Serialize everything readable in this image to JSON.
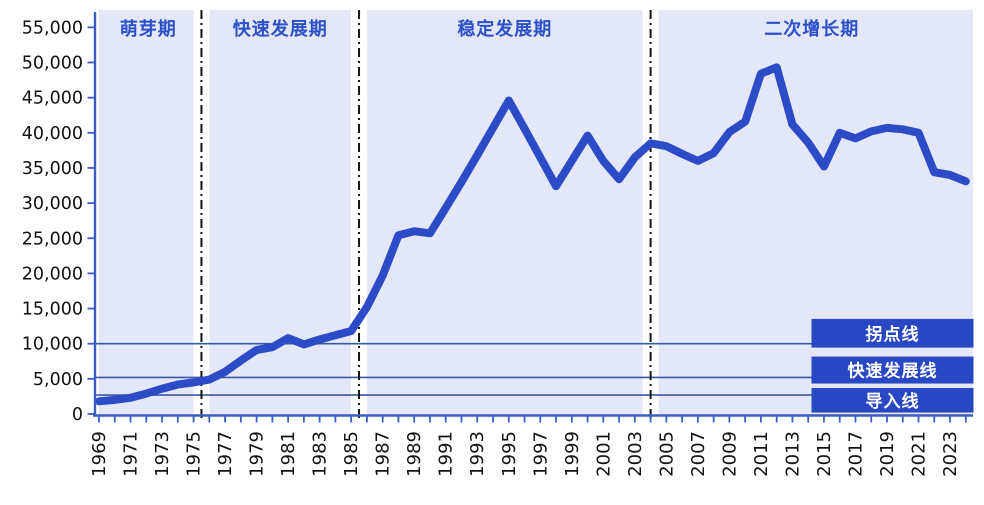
{
  "chart_data": {
    "type": "line",
    "title": "",
    "x_years": [
      1969,
      1970,
      1971,
      1972,
      1973,
      1974,
      1975,
      1976,
      1977,
      1978,
      1979,
      1980,
      1981,
      1982,
      1983,
      1984,
      1985,
      1986,
      1987,
      1988,
      1989,
      1990,
      1991,
      1992,
      1993,
      1994,
      1995,
      1996,
      1997,
      1998,
      1999,
      2000,
      2001,
      2002,
      2003,
      2004,
      2005,
      2006,
      2007,
      2008,
      2009,
      2010,
      2011,
      2012,
      2013,
      2014,
      2015,
      2016,
      2017,
      2018,
      2019,
      2020,
      2021,
      2022,
      2023,
      2024
    ],
    "values": [
      1800,
      2000,
      2300,
      2900,
      3600,
      4200,
      4500,
      4900,
      6000,
      7600,
      9100,
      9500,
      10800,
      9900,
      10600,
      11200,
      11800,
      15200,
      19700,
      25400,
      26000,
      25700,
      29300,
      33000,
      36800,
      40700,
      44600,
      40600,
      36500,
      32400,
      36000,
      39600,
      36000,
      33400,
      36500,
      38500,
      38100,
      37000,
      36000,
      37100,
      40100,
      41600,
      48400,
      49300,
      41200,
      38600,
      35200,
      40000,
      39200,
      40200,
      40700,
      40500,
      40000,
      34400,
      34000,
      33100
    ],
    "ylim": [
      0,
      55000
    ],
    "ytick_step": 5000,
    "ytick_labels": [
      "0",
      "5,000",
      "10,000",
      "15,000",
      "20,000",
      "25,000",
      "30,000",
      "35,000",
      "40,000",
      "45,000",
      "50,000",
      "55,000"
    ],
    "xtick_label_years": [
      1969,
      1971,
      1973,
      1975,
      1977,
      1979,
      1981,
      1983,
      1985,
      1987,
      1989,
      1991,
      1993,
      1995,
      1997,
      1999,
      2001,
      2003,
      2005,
      2007,
      2009,
      2011,
      2013,
      2015,
      2017,
      2019,
      2021,
      2023
    ],
    "grid": false,
    "legend_position": "none",
    "phases": [
      {
        "label": "萌芽期",
        "from": 1968.5,
        "to": 1975.5
      },
      {
        "label": "快速发展期",
        "from": 1975.5,
        "to": 1985.5
      },
      {
        "label": "稳定发展期",
        "from": 1985.5,
        "to": 2004.0
      },
      {
        "label": "二次增长期",
        "from": 2004.0,
        "to": 2024.5
      }
    ],
    "reference_lines": [
      {
        "label": "拐点线",
        "value": 10000
      },
      {
        "label": "快速发展线",
        "value": 5200
      },
      {
        "label": "导入线",
        "value": 2700
      }
    ],
    "colors": {
      "background": "#ffffff",
      "plot_band": "#e4e7f7",
      "line": "#2b4bc7",
      "axis": "#3c5cc6",
      "reference_line": "#3b57a8",
      "divider": "#141414",
      "label_box": "#2847c2",
      "label_box_text": "#ffffff",
      "phase_label_text": "#2b50c8",
      "tick_label": "#111111"
    }
  }
}
